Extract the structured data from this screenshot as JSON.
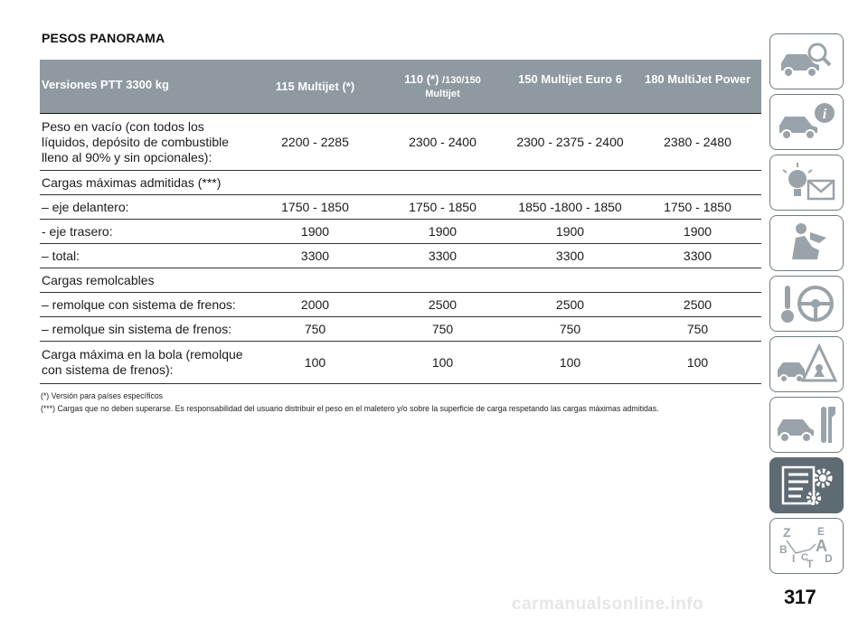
{
  "section_title": "PESOS PANORAMA",
  "table": {
    "headers": {
      "versions": "Versiones PTT 3300 kg",
      "col1": "115 Multijet (*)",
      "col2_main": "110 (*) ",
      "col2_small": "/130/150",
      "col2_second": "Multijet",
      "col3": "150 Multijet Euro 6",
      "col4": "180 MultiJet Power"
    },
    "rows": [
      {
        "label": "Peso en vacío (con todos los líquidos, depósito de combustible lleno al 90% y sin opcionales):",
        "values": [
          "2200 - 2285",
          "2300 - 2400",
          "2300 - 2375 - 2400",
          "2380 - 2480"
        ]
      },
      {
        "label": "Cargas máximas admitidas (***)",
        "values": [
          "",
          "",
          "",
          ""
        ]
      },
      {
        "label": "– eje delantero:",
        "values": [
          "1750 - 1850",
          "1750 - 1850",
          "1850 -1800 - 1850",
          "1750 - 1850"
        ]
      },
      {
        "label": "- eje trasero:",
        "values": [
          "1900",
          "1900",
          "1900",
          "1900"
        ]
      },
      {
        "label": "– total:",
        "values": [
          "3300",
          "3300",
          "3300",
          "3300"
        ]
      },
      {
        "label": "Cargas remolcables",
        "values": [
          "",
          "",
          "",
          ""
        ]
      },
      {
        "label": "– remolque con sistema de frenos:",
        "values": [
          "2000",
          "2500",
          "2500",
          "2500"
        ]
      },
      {
        "label": "– remolque sin sistema de frenos:",
        "values": [
          "750",
          "750",
          "750",
          "750"
        ]
      },
      {
        "label": "Carga máxima en la bola (remolque con sistema de frenos):",
        "values": [
          "100",
          "100",
          "100",
          "100"
        ]
      }
    ]
  },
  "notes": {
    "note1": "(*) Versión para países específicos",
    "note2": "(***) Cargas que no deben superarse. Es responsabilidad del usuario distribuir el peso en el maletero y/o sobre la superficie de carga respetando las cargas máximas admitidas."
  },
  "tabs": [
    {
      "icon": "car-search-icon",
      "active": false
    },
    {
      "icon": "car-info-icon",
      "active": false
    },
    {
      "icon": "warning-lights-icon",
      "active": false
    },
    {
      "icon": "seat-airbag-icon",
      "active": false
    },
    {
      "icon": "steering-wheel-key-icon",
      "active": false
    },
    {
      "icon": "car-breakdown-warning-icon",
      "active": false
    },
    {
      "icon": "car-tools-icon",
      "active": false
    },
    {
      "icon": "specifications-gear-icon",
      "active": true
    },
    {
      "icon": "alphabetical-index-icon",
      "active": false
    }
  ],
  "colors": {
    "header_bg": "#8e99a0",
    "tab_border": "#6e7a82",
    "tab_active": "#5f6b73"
  },
  "page_number": "317",
  "watermark": "carmanualsonline.info"
}
